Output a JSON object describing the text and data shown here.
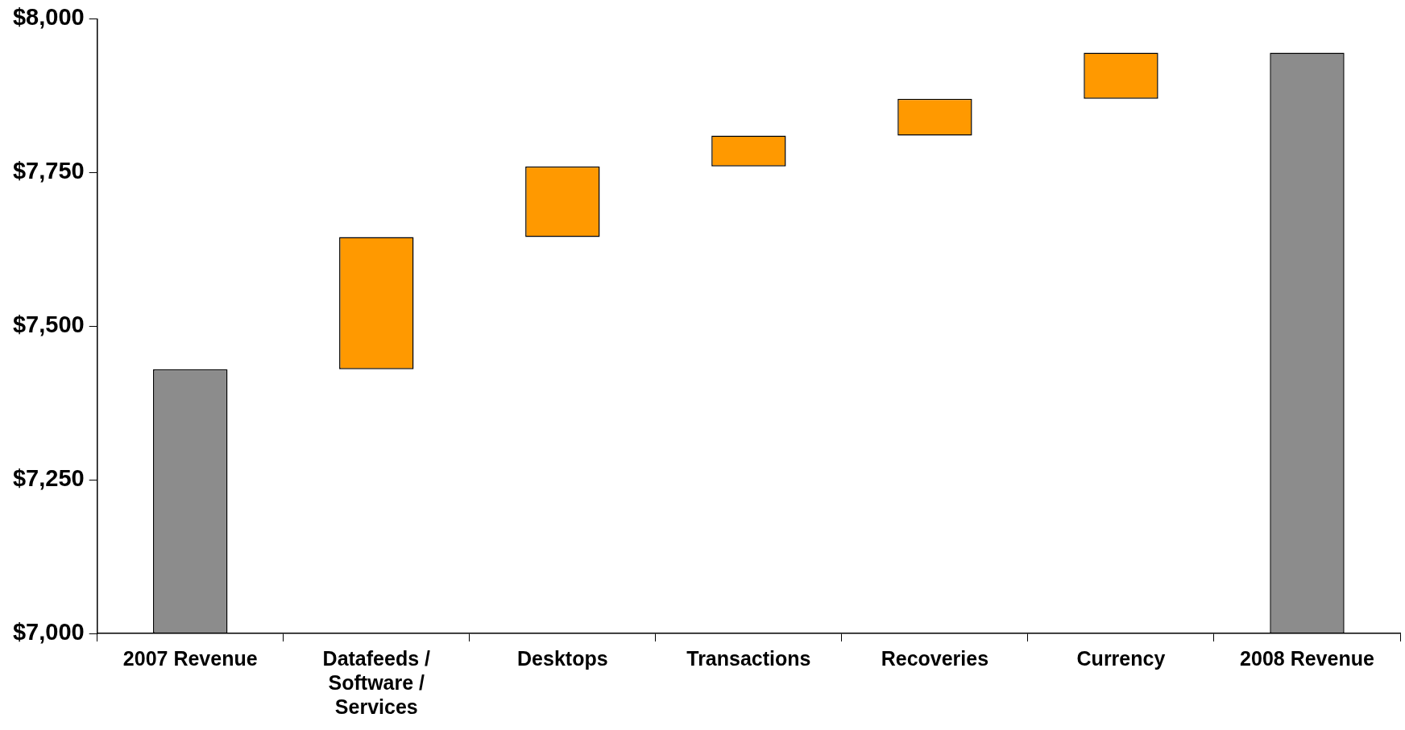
{
  "chart_data": {
    "type": "bar",
    "categories": [
      "2007 Revenue",
      "Datafeeds / Software / Services",
      "Desktops",
      "Transactions",
      "Recoveries",
      "Currency",
      "2008 Revenue"
    ],
    "base": [
      7000,
      7430,
      7645,
      7760,
      7810,
      7870,
      7000
    ],
    "values": [
      430,
      215,
      115,
      50,
      60,
      75,
      945
    ],
    "colors": [
      "#8c8c8c",
      "#ff9900",
      "#ff9900",
      "#ff9900",
      "#ff9900",
      "#ff9900",
      "#8c8c8c"
    ],
    "ylim": [
      7000,
      8000
    ],
    "yticks": [
      {
        "value": 7000,
        "label": "$7,000"
      },
      {
        "value": 7250,
        "label": "$7,250"
      },
      {
        "value": 7500,
        "label": "$7,500"
      },
      {
        "value": 7750,
        "label": "$7,750"
      },
      {
        "value": 8000,
        "label": "$8,000"
      }
    ],
    "grid": false,
    "legend": false
  }
}
